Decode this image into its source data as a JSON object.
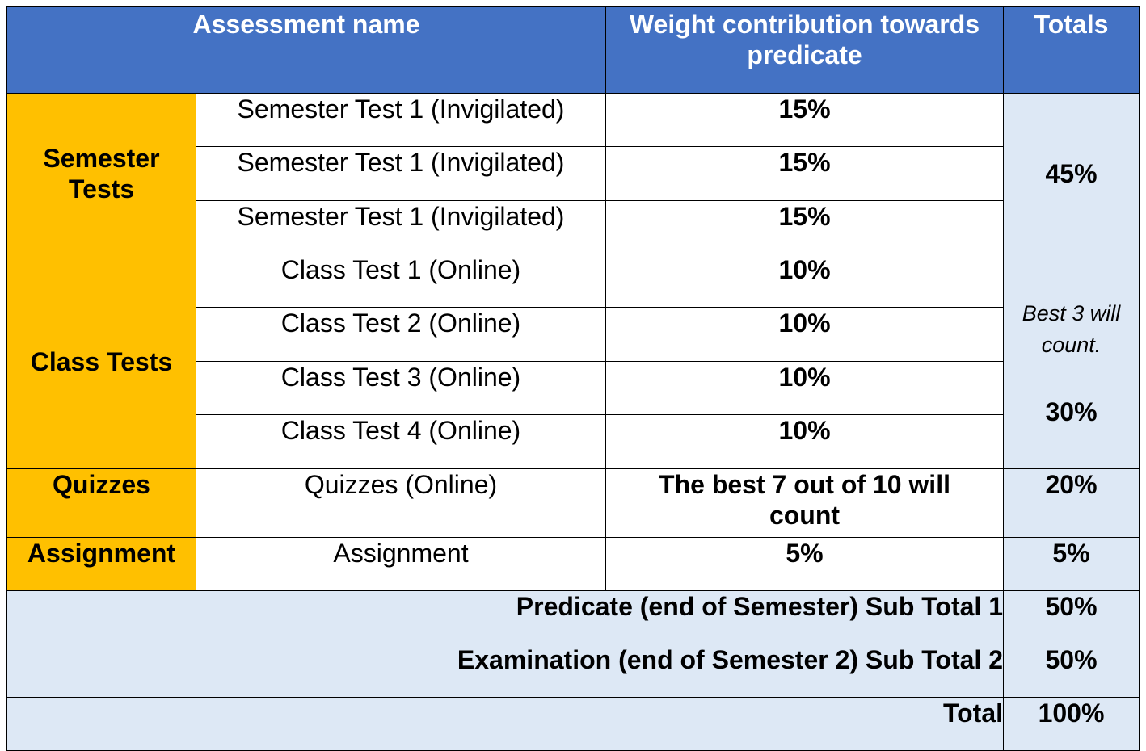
{
  "table": {
    "headers": {
      "assessment_name": "Assessment name",
      "weight": "Weight contribution towards predicate",
      "totals": "Totals"
    },
    "semester_tests": {
      "category": "Semester Tests",
      "rows": [
        {
          "name": "Semester Test 1 (Invigilated)",
          "weight": "15%"
        },
        {
          "name": "Semester Test 1 (Invigilated)",
          "weight": "15%"
        },
        {
          "name": "Semester Test 1 (Invigilated)",
          "weight": "15%"
        }
      ],
      "total": "45%"
    },
    "class_tests": {
      "category": "Class Tests",
      "rows": [
        {
          "name": "Class Test 1 (Online)",
          "weight": "10%"
        },
        {
          "name": "Class Test 2 (Online)",
          "weight": "10%"
        },
        {
          "name": "Class Test 3 (Online)",
          "weight": "10%"
        },
        {
          "name": "Class Test 4 (Online)",
          "weight": "10%"
        }
      ],
      "note": "Best 3 will count.",
      "total": "30%"
    },
    "quizzes": {
      "category": "Quizzes",
      "name": "Quizzes (Online)",
      "weight": "The best 7 out of 10 will count",
      "total": "20%"
    },
    "assignment": {
      "category": "Assignment",
      "name": "Assignment",
      "weight": "5%",
      "total": "5%"
    },
    "subtotal_1": {
      "label": "Predicate (end of Semester) Sub Total 1",
      "value": "50%"
    },
    "subtotal_2": {
      "label": "Examination (end of Semester 2) Sub Total 2",
      "value": "50%"
    },
    "grand_total": {
      "label": "Total",
      "value": "100%"
    }
  }
}
